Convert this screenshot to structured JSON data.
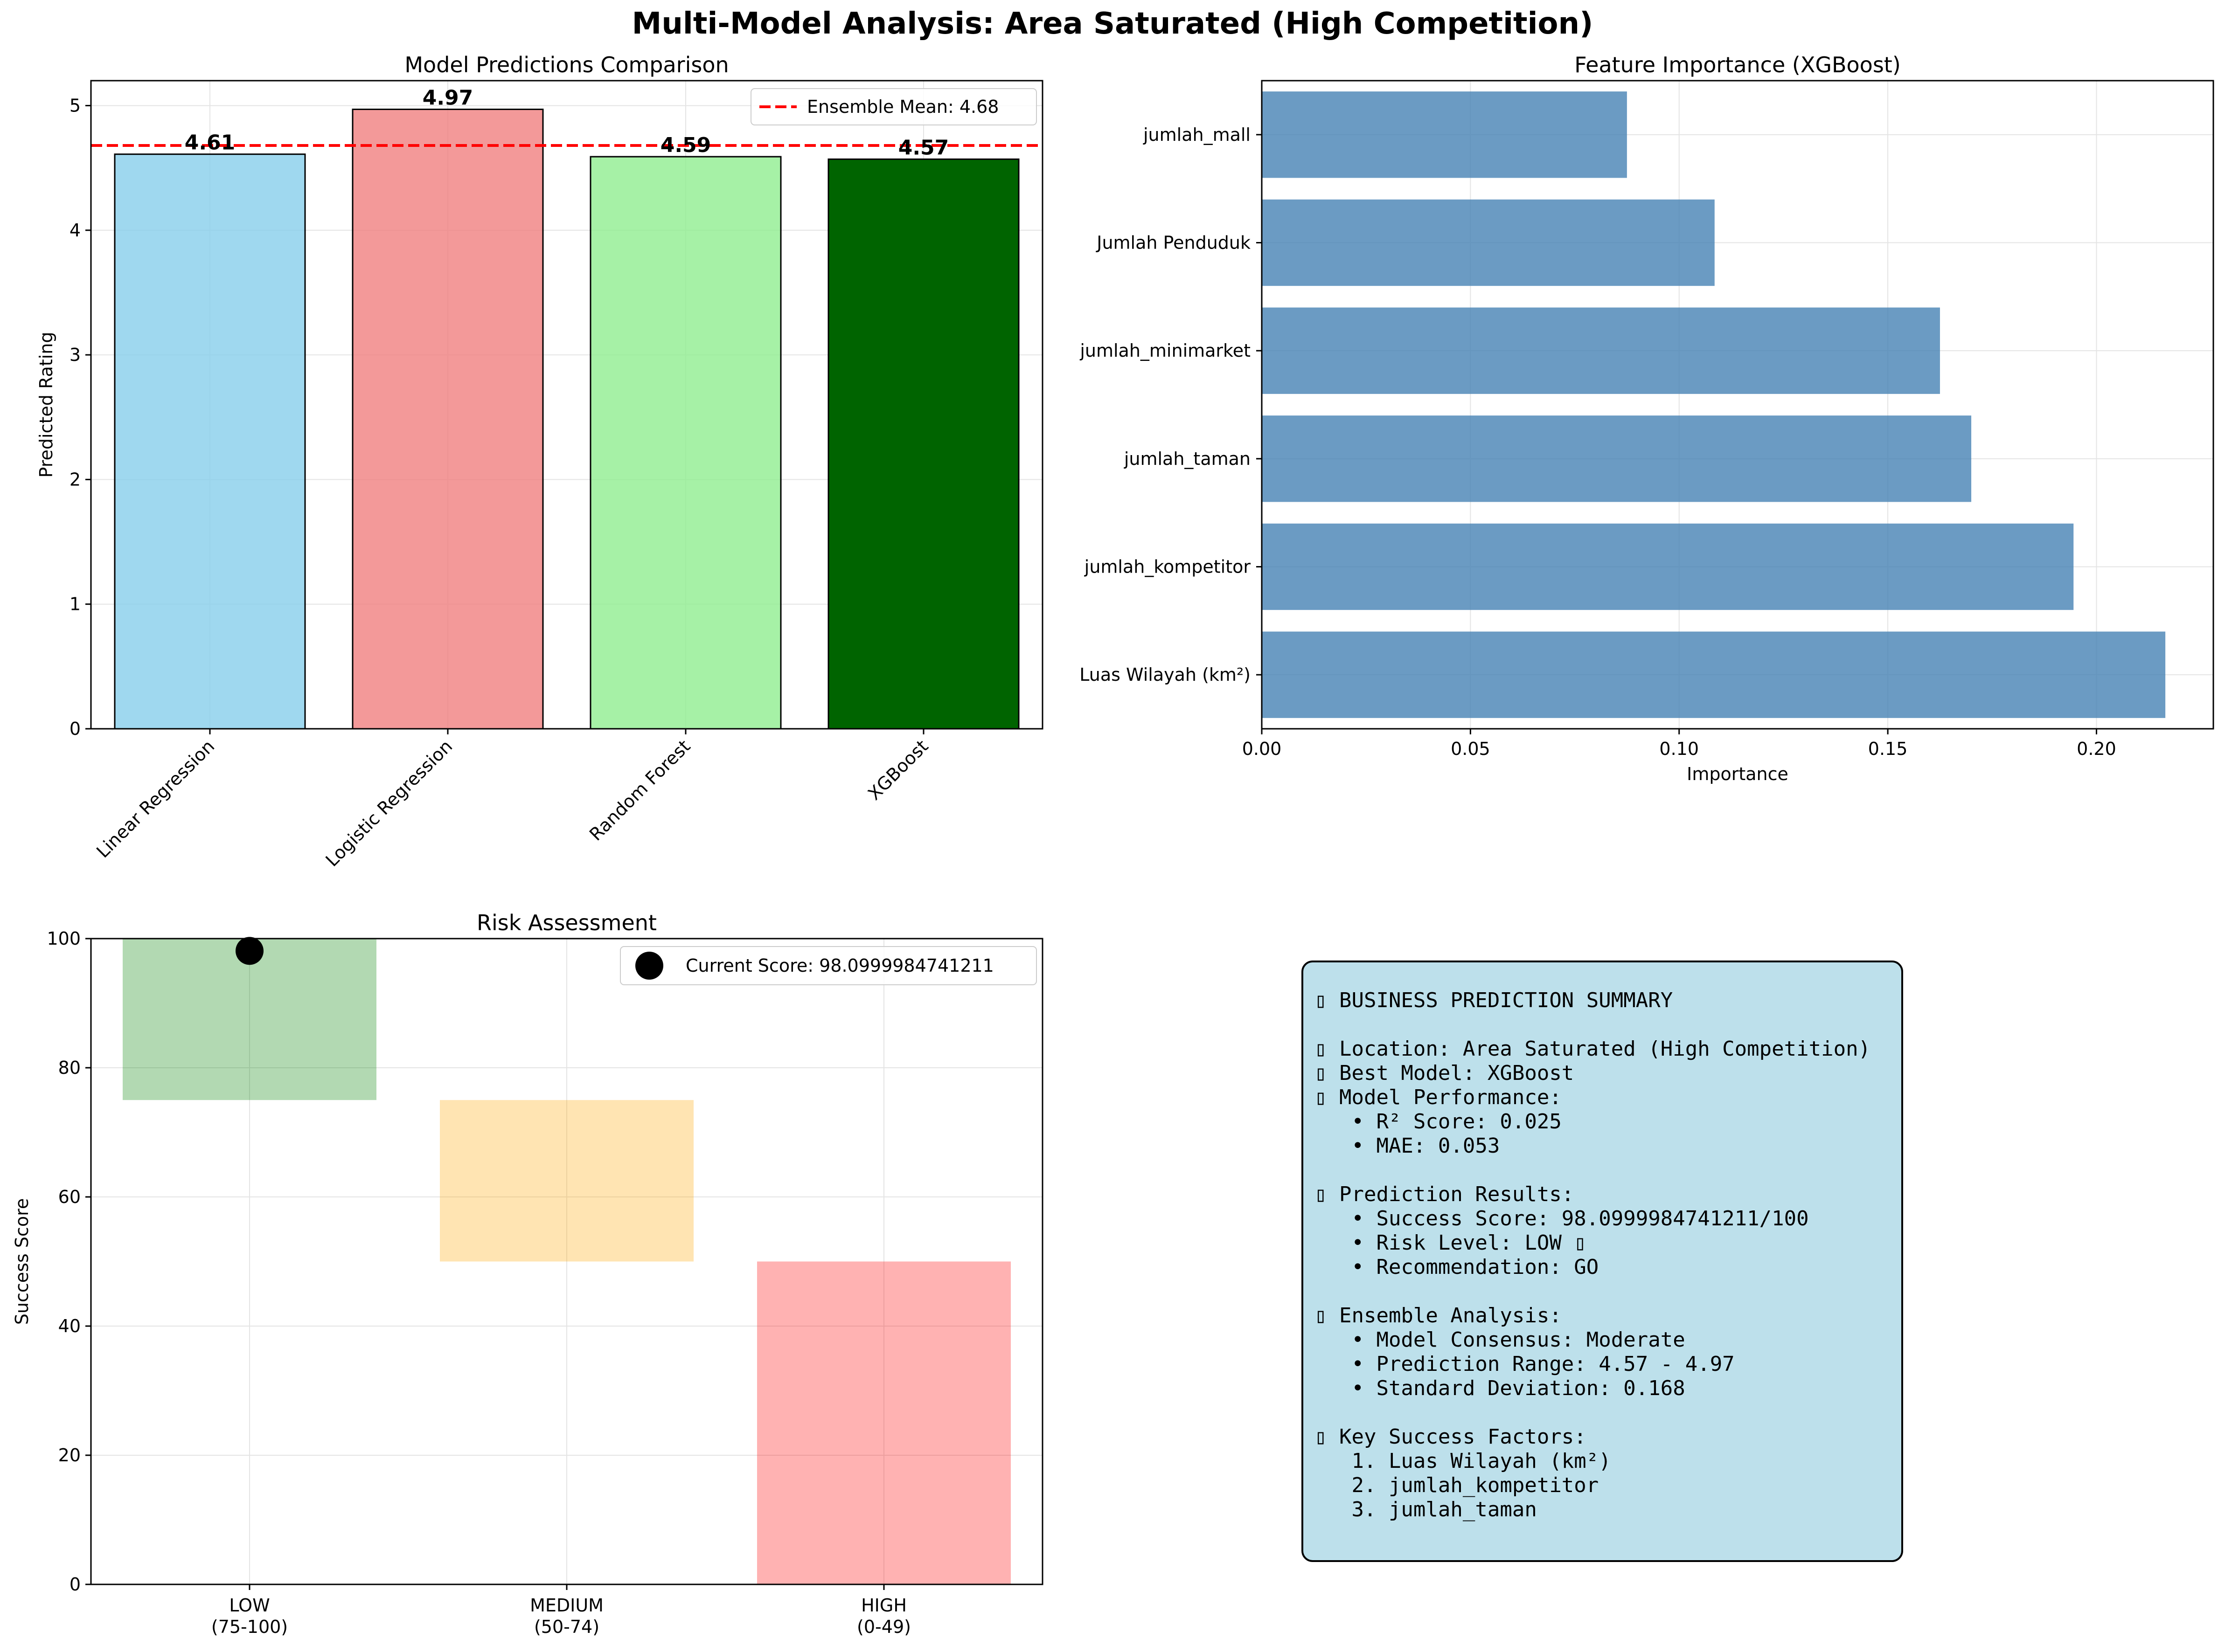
{
  "figure_title": "Multi-Model Analysis: Area Saturated (High Competition)",
  "chart_data": [
    {
      "type": "bar",
      "title": "Model Predictions Comparison",
      "xlabel": "",
      "ylabel": "Predicted Rating",
      "categories": [
        "Linear Regression",
        "Logistic Regression",
        "Random Forest",
        "XGBoost"
      ],
      "values": [
        4.61,
        4.97,
        4.59,
        4.57
      ],
      "value_labels": [
        "4.61",
        "4.97",
        "4.59",
        "4.57"
      ],
      "colors": [
        "#87ceeb",
        "#f08080",
        "#90ee90",
        "#006400"
      ],
      "ylim": [
        0,
        5.2
      ],
      "yticks": [
        0,
        1,
        2,
        3,
        4,
        5
      ],
      "reference_line": {
        "value": 4.68,
        "label": "Ensemble Mean: 4.68",
        "color": "#ff0000",
        "style": "dashed"
      },
      "legend_position": "top-right",
      "grid": true
    },
    {
      "type": "bar",
      "orientation": "horizontal",
      "title": "Feature Importance (XGBoost)",
      "xlabel": "Importance",
      "ylabel": "",
      "categories": [
        "Luas Wilayah (km²)",
        "jumlah_kompetitor",
        "jumlah_taman",
        "jumlah_minimarket",
        "Jumlah Penduduk",
        "jumlah_mall"
      ],
      "values": [
        0.2165,
        0.1945,
        0.17,
        0.1625,
        0.1085,
        0.0875
      ],
      "color": "#4682b4",
      "xlim": [
        0,
        0.228
      ],
      "xticks": [
        "0.00",
        "0.05",
        "0.10",
        "0.15",
        "0.20"
      ],
      "grid": true
    },
    {
      "type": "bar",
      "title": "Risk Assessment",
      "xlabel": "",
      "ylabel": "Success Score",
      "categories": [
        "LOW\n(75-100)",
        "MEDIUM\n(50-74)",
        "HIGH\n(0-49)"
      ],
      "ranges": [
        [
          75,
          100
        ],
        [
          50,
          75
        ],
        [
          0,
          50
        ]
      ],
      "colors": [
        "#008000",
        "#ffa500",
        "#ff0000"
      ],
      "ylim": [
        0,
        100
      ],
      "yticks": [
        0,
        20,
        40,
        60,
        80,
        100
      ],
      "current_score": {
        "category_index": 0,
        "value": 98.0999984741211,
        "label": "Current Score: 98.0999984741211",
        "color": "#000000"
      },
      "legend_position": "top-right",
      "grid": true
    }
  ],
  "summary_lines": [
    "▯ BUSINESS PREDICTION SUMMARY",
    "",
    "▯ Location: Area Saturated (High Competition)",
    "▯ Best Model: XGBoost",
    "▯ Model Performance:",
    "   • R² Score: 0.025",
    "   • MAE: 0.053",
    "",
    "▯ Prediction Results:",
    "   • Success Score: 98.0999984741211/100",
    "   • Risk Level: LOW ▯",
    "   • Recommendation: GO",
    "",
    "▯ Ensemble Analysis:",
    "   • Model Consensus: Moderate",
    "   • Prediction Range: 4.57 - 4.97",
    "   • Standard Deviation: 0.168",
    "",
    "▯ Key Success Factors:",
    "   1. Luas Wilayah (km²)",
    "   2. jumlah_kompetitor",
    "   3. jumlah_taman"
  ]
}
